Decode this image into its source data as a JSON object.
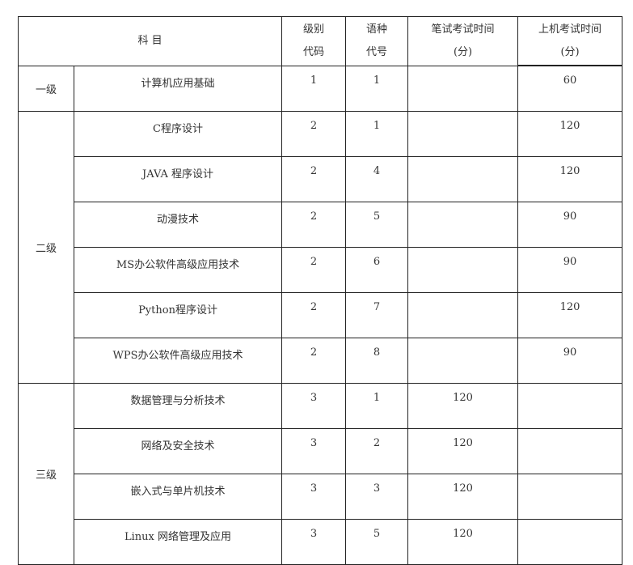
{
  "header": {
    "subject": "科 目",
    "level_code": [
      "级别",
      "代码"
    ],
    "language_code": [
      "语种",
      "代号"
    ],
    "written_time": [
      "笔试考试时间",
      "(分)"
    ],
    "computer_time": [
      "上机考试时间",
      "(分)"
    ]
  },
  "groups": [
    {
      "level": "一级",
      "rows": [
        {
          "subject": "计算机应用基础",
          "level_code": "1",
          "language_code": "1",
          "written": "",
          "computer": "60"
        }
      ]
    },
    {
      "level": "二级",
      "rows": [
        {
          "subject": "C程序设计",
          "level_code": "2",
          "language_code": "1",
          "written": "",
          "computer": "120"
        },
        {
          "subject": "JAVA 程序设计",
          "level_code": "2",
          "language_code": "4",
          "written": "",
          "computer": "120"
        },
        {
          "subject": "动漫技术",
          "level_code": "2",
          "language_code": "5",
          "written": "",
          "computer": "90"
        },
        {
          "subject": "MS办公软件高级应用技术",
          "level_code": "2",
          "language_code": "6",
          "written": "",
          "computer": "90"
        },
        {
          "subject": "Python程序设计",
          "level_code": "2",
          "language_code": "7",
          "written": "",
          "computer": "120"
        },
        {
          "subject": "WPS办公软件高级应用技术",
          "level_code": "2",
          "language_code": "8",
          "written": "",
          "computer": "90"
        }
      ]
    },
    {
      "level": "三级",
      "rows": [
        {
          "subject": "数据管理与分析技术",
          "level_code": "3",
          "language_code": "1",
          "written": "120",
          "computer": ""
        },
        {
          "subject": "网络及安全技术",
          "level_code": "3",
          "language_code": "2",
          "written": "120",
          "computer": ""
        },
        {
          "subject": "嵌入式与单片机技术",
          "level_code": "3",
          "language_code": "3",
          "written": "120",
          "computer": ""
        },
        {
          "subject": "Linux 网络管理及应用",
          "level_code": "3",
          "language_code": "5",
          "written": "120",
          "computer": ""
        }
      ]
    }
  ]
}
